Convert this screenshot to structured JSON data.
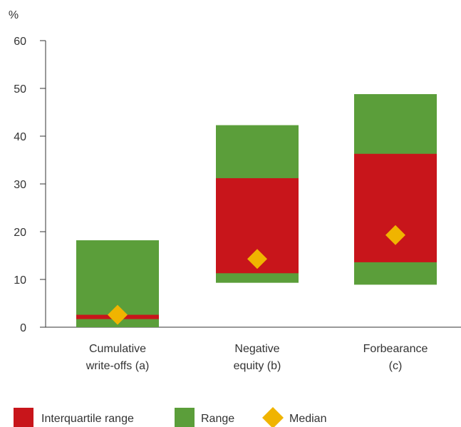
{
  "chart_data": {
    "type": "bar",
    "ylabel": "%",
    "ylim": [
      0,
      60
    ],
    "yticks": [
      0,
      10,
      20,
      30,
      40,
      50,
      60
    ],
    "categories": [
      [
        "Cumulative",
        "write-offs (a)"
      ],
      [
        "Negative",
        "equity (b)"
      ],
      [
        "Forbearance",
        "(c)"
      ]
    ],
    "series": [
      {
        "name": "Range",
        "values": [
          [
            0,
            18.2
          ],
          [
            9.3,
            42.3
          ],
          [
            8.9,
            48.8
          ]
        ]
      },
      {
        "name": "Interquartile range",
        "values": [
          [
            1.7,
            2.6
          ],
          [
            11.3,
            31.2
          ],
          [
            13.6,
            36.3
          ]
        ]
      },
      {
        "name": "Median",
        "values": [
          2.6,
          14.3,
          19.3
        ]
      }
    ],
    "colors": {
      "Range": "#5b9e3a",
      "Interquartile range": "#c8151b",
      "Median": "#f0b400"
    },
    "legend": {
      "placement": "bottom",
      "items": [
        "Interquartile range",
        "Range",
        "Median"
      ]
    },
    "grid": false
  }
}
